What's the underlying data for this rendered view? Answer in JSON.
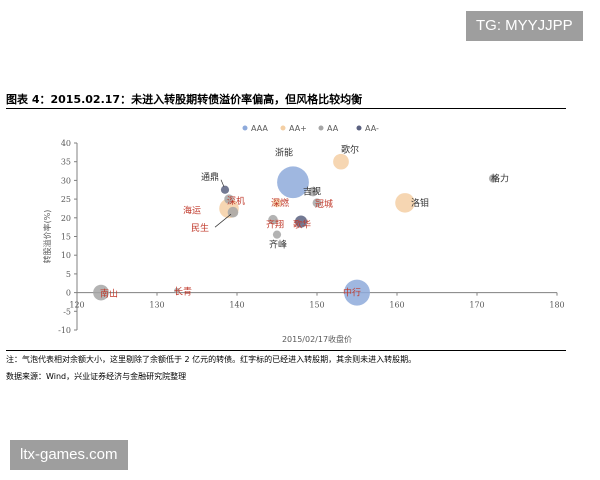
{
  "watermarks": {
    "top": "TG: MYYJJPP",
    "bottom": "ltx-games.com"
  },
  "figure": {
    "title": "图表 4：2015.02.17：未进入转股期转债溢价率偏高，但风格比较均衡",
    "note": "注：气泡代表相对余额大小，这里剔除了余额低于 2 亿元的转债。红字标的已经进入转股期，其余则未进入转股期。",
    "source": "数据来源：Wind，兴业证券经济与金融研究院整理"
  },
  "colors": {
    "AAA": "#8eaadb",
    "AA+": "#f4cfa4",
    "AA": "#a6a6a6",
    "AA-": "#5b6180",
    "label_in_period": "#c0392b",
    "label_not_in_period": "#333333",
    "zero_line": "#808080"
  },
  "chart_data": {
    "type": "bubble",
    "xlabel": "2015/02/17收盘价",
    "ylabel": "转股溢价率(%)",
    "xlim": [
      120,
      180
    ],
    "ylim": [
      -10,
      40
    ],
    "x_ticks": [
      "120",
      "130",
      "140",
      "150",
      "160",
      "170",
      "180"
    ],
    "y_ticks": [
      "-10",
      "-5",
      "0",
      "5",
      "10",
      "15",
      "20",
      "25",
      "30",
      "35",
      "40"
    ],
    "legend": {
      "position": "top",
      "entries": [
        "AAA",
        "AA+",
        "AA",
        "AA-"
      ]
    },
    "grid": false,
    "points": [
      {
        "name": "浙能",
        "x": 147,
        "y": 29.5,
        "size": 9,
        "rating": "AAA",
        "in_conversion": false
      },
      {
        "name": "中行",
        "x": 155,
        "y": 0,
        "size": 6,
        "rating": "AAA",
        "in_conversion": true
      },
      {
        "name": "歌尔",
        "x": 153,
        "y": 35,
        "size": 2.2,
        "rating": "AA+",
        "in_conversion": false
      },
      {
        "name": "洛钼",
        "x": 161,
        "y": 24,
        "size": 3.4,
        "rating": "AA+",
        "in_conversion": false
      },
      {
        "name": "海运",
        "x": 139,
        "y": 22.5,
        "size": 3.4,
        "rating": "AA+",
        "in_conversion": true
      },
      {
        "name": "吉视",
        "x": 149.5,
        "y": 27,
        "size": 0.8,
        "rating": "AA",
        "in_conversion": false
      },
      {
        "name": "通鼎",
        "x": 138.5,
        "y": 27.5,
        "size": 0.6,
        "rating": "AA-",
        "in_conversion": false
      },
      {
        "name": "深机",
        "x": 139,
        "y": 25,
        "size": 0.8,
        "rating": "AA",
        "in_conversion": true
      },
      {
        "name": "深燃",
        "x": 145,
        "y": 24,
        "size": 0.7,
        "rating": "AA+",
        "in_conversion": true
      },
      {
        "name": "冠城",
        "x": 150,
        "y": 24,
        "size": 0.7,
        "rating": "AA",
        "in_conversion": true
      },
      {
        "name": "齐翔",
        "x": 144.5,
        "y": 19.5,
        "size": 0.8,
        "rating": "AA",
        "in_conversion": true
      },
      {
        "name": "歌华",
        "x": 148,
        "y": 19,
        "size": 1.3,
        "rating": "AA-",
        "in_conversion": true
      },
      {
        "name": "民生",
        "x": 139.5,
        "y": 21.5,
        "size": 1,
        "rating": "AA",
        "in_conversion": true
      },
      {
        "name": "齐峰",
        "x": 145,
        "y": 15.5,
        "size": 0.6,
        "rating": "AA",
        "in_conversion": false
      },
      {
        "name": "格力",
        "x": 172,
        "y": 30.5,
        "size": 0.6,
        "rating": "AA",
        "in_conversion": false
      },
      {
        "name": "南山",
        "x": 123,
        "y": 0,
        "size": 2.2,
        "rating": "AA",
        "in_conversion": true
      },
      {
        "name": "长青",
        "x": 132.5,
        "y": 0.5,
        "size": 0.3,
        "rating": "AA",
        "in_conversion": true
      }
    ]
  }
}
